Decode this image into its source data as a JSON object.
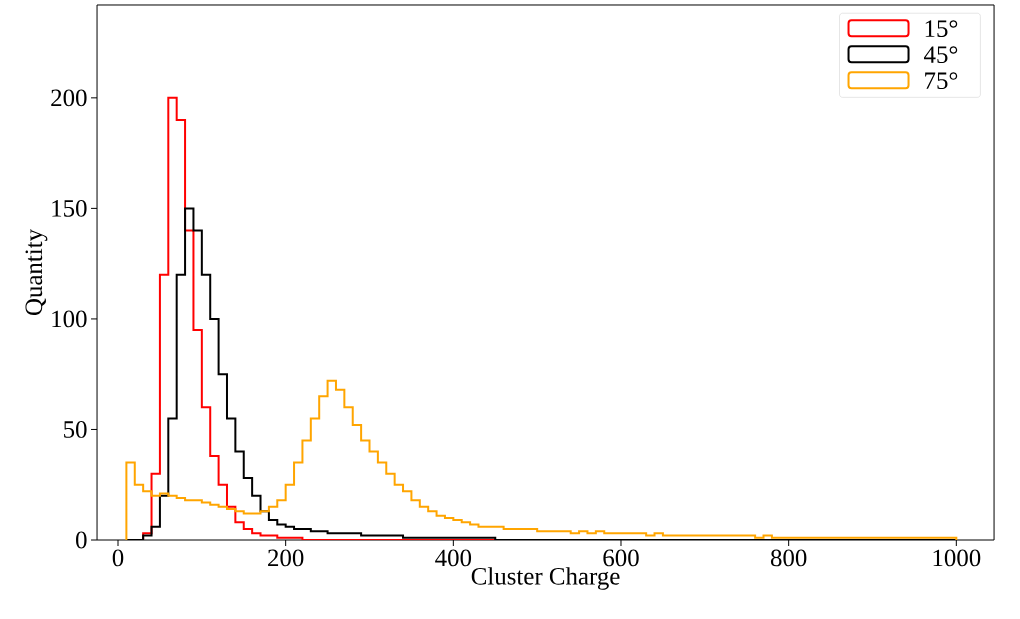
{
  "chart_data": {
    "type": "histogram",
    "xlabel": "Cluster Charge",
    "ylabel": "Quantity",
    "bins": [
      10,
      20,
      30,
      40,
      50,
      60,
      70,
      80,
      90,
      100,
      110,
      120,
      130,
      140,
      150,
      160,
      170,
      180,
      190,
      200,
      210,
      220,
      230,
      240,
      250,
      260,
      270,
      280,
      290,
      300,
      310,
      320,
      330,
      340,
      350,
      360,
      370,
      380,
      390,
      400,
      410,
      420,
      430,
      440,
      450,
      460,
      470,
      480,
      490,
      500,
      510,
      520,
      530,
      540,
      550,
      560,
      570,
      580,
      590,
      600,
      610,
      620,
      630,
      640,
      650,
      660,
      670,
      680,
      690,
      700,
      710,
      720,
      730,
      740,
      750,
      760,
      770,
      780,
      790,
      800,
      810,
      820,
      830,
      840,
      850,
      860,
      870,
      880,
      890,
      900,
      910,
      920,
      930,
      940,
      950,
      960,
      970,
      980,
      990,
      1000
    ],
    "series": [
      {
        "name": "15°",
        "color": "#ff0000",
        "values": [
          0,
          0,
          3,
          30,
          120,
          200,
          190,
          140,
          95,
          60,
          38,
          25,
          15,
          8,
          5,
          3,
          2,
          2,
          1,
          1,
          1,
          0,
          0,
          0,
          0,
          0,
          0,
          0,
          0,
          0,
          0,
          0,
          0,
          0,
          0,
          0,
          0,
          0,
          0,
          0,
          0,
          0,
          0,
          0,
          0,
          0,
          0,
          0,
          0,
          0,
          0,
          0,
          0,
          0,
          0,
          0,
          0,
          0,
          0,
          0,
          0,
          0,
          0,
          0,
          0,
          0,
          0,
          0,
          0,
          0,
          0,
          0,
          0,
          0,
          0,
          0,
          0,
          0,
          0,
          0,
          0,
          0,
          0,
          0,
          0,
          0,
          0,
          0,
          0,
          0,
          0,
          0,
          0,
          0,
          0,
          0,
          0,
          0,
          0
        ]
      },
      {
        "name": "45°",
        "color": "#000000",
        "values": [
          0,
          0,
          2,
          6,
          20,
          55,
          120,
          150,
          140,
          120,
          100,
          75,
          55,
          40,
          28,
          20,
          13,
          9,
          7,
          6,
          5,
          5,
          4,
          4,
          3,
          3,
          3,
          3,
          2,
          2,
          2,
          2,
          2,
          1,
          1,
          1,
          1,
          1,
          1,
          1,
          1,
          1,
          1,
          1,
          0,
          0,
          0,
          0,
          0,
          0,
          0,
          0,
          0,
          0,
          0,
          0,
          0,
          0,
          0,
          0,
          0,
          0,
          0,
          0,
          0,
          0,
          0,
          0,
          0,
          0,
          0,
          0,
          0,
          0,
          0,
          0,
          0,
          0,
          0,
          0,
          0,
          0,
          0,
          0,
          0,
          0,
          0,
          0,
          0,
          0,
          0,
          0,
          0,
          0,
          0,
          0,
          0,
          0,
          0
        ]
      },
      {
        "name": "75°",
        "color": "#ffa500",
        "values": [
          35,
          25,
          22,
          20,
          21,
          20,
          19,
          18,
          18,
          17,
          16,
          15,
          14,
          13,
          12,
          12,
          13,
          15,
          18,
          25,
          35,
          45,
          55,
          65,
          72,
          68,
          60,
          52,
          45,
          40,
          35,
          30,
          25,
          22,
          18,
          15,
          13,
          11,
          10,
          9,
          8,
          7,
          6,
          6,
          6,
          5,
          5,
          5,
          5,
          4,
          4,
          4,
          4,
          3,
          4,
          3,
          4,
          3,
          3,
          3,
          3,
          3,
          2,
          3,
          2,
          2,
          2,
          2,
          2,
          2,
          2,
          2,
          2,
          2,
          2,
          1,
          2,
          1,
          1,
          1,
          1,
          1,
          1,
          1,
          1,
          1,
          1,
          1,
          1,
          1,
          1,
          1,
          1,
          1,
          1,
          1,
          1,
          1,
          1
        ]
      }
    ],
    "xlim": [
      -25,
      1045
    ],
    "ylim": [
      0,
      242
    ],
    "xticks": [
      0,
      200,
      400,
      600,
      800,
      1000
    ],
    "yticks": [
      0,
      50,
      100,
      150,
      200
    ],
    "legend": "top right"
  }
}
